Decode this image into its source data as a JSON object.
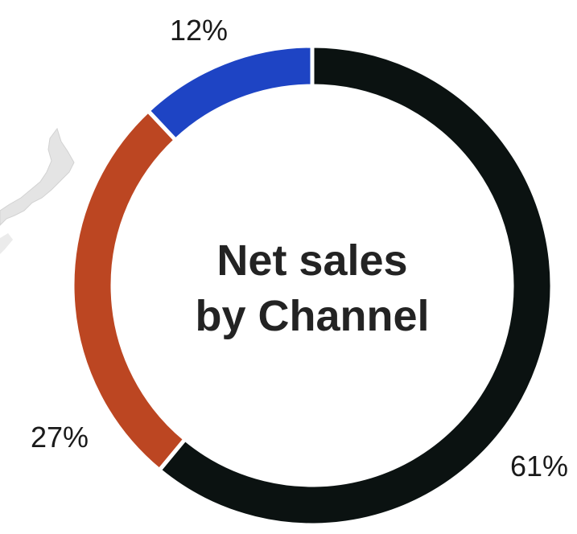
{
  "chart_data": {
    "type": "pie",
    "title": "Net sales by Channel",
    "title_lines": [
      "Net sales",
      "by Channel"
    ],
    "donut": true,
    "categories": [
      "",
      "",
      ""
    ],
    "values": [
      61,
      27,
      12
    ],
    "labels": [
      "61%",
      "27%",
      "12%"
    ],
    "colors": [
      "#0b1211",
      "#bc4622",
      "#1e44c4"
    ],
    "legend": "none"
  }
}
